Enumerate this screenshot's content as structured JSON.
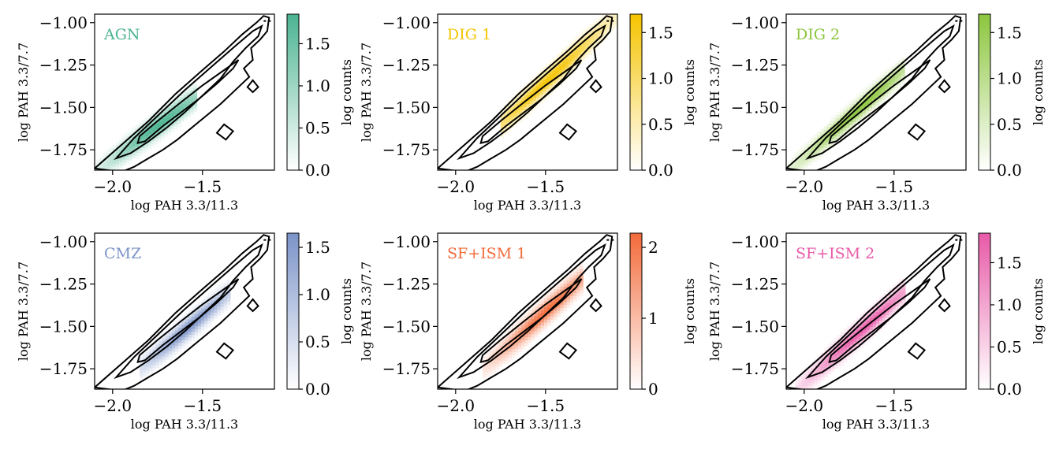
{
  "chart_data": [
    {
      "type": "heatmap",
      "label": "AGN",
      "xlabel": "log PAH 3.3/11.3",
      "ylabel": "log PAH 3.3/7.7",
      "xlim": [
        -2.1,
        -1.1
      ],
      "ylim": [
        -1.87,
        -0.95
      ],
      "xticks": [
        -2.0,
        -1.5
      ],
      "xtick_labels": [
        "−2.0",
        "−1.5"
      ],
      "yticks": [
        -1.0,
        -1.25,
        -1.5,
        -1.75
      ],
      "ytick_labels": [
        "−1.00",
        "−1.25",
        "−1.50",
        "−1.75"
      ],
      "colorbar": {
        "label": "log counts",
        "range": [
          0.0,
          1.85
        ],
        "ticks": [
          0.0,
          0.5,
          1.0,
          1.5
        ],
        "tick_labels": [
          "0.0",
          "0.5",
          "1.0",
          "1.5"
        ]
      },
      "color": "#4bb391",
      "density": {
        "x_start": -2.09,
        "x_end": -1.55,
        "y_start": -1.88,
        "y_end": -1.45,
        "center_x": -1.75,
        "peak": 1.8,
        "width": 0.055
      },
      "contours": true,
      "grid": false
    },
    {
      "type": "heatmap",
      "label": "DIG 1",
      "xlabel": "log PAH 3.3/11.3",
      "ylabel": "log PAH 3.3/7.7",
      "xlim": [
        -2.1,
        -1.1
      ],
      "ylim": [
        -1.87,
        -0.95
      ],
      "xticks": [
        -2.0,
        -1.5
      ],
      "xtick_labels": [
        "−2.0",
        "−1.5"
      ],
      "yticks": [
        -1.0,
        -1.25,
        -1.5,
        -1.75
      ],
      "ytick_labels": [
        "−1.00",
        "−1.25",
        "−1.50",
        "−1.75"
      ],
      "colorbar": {
        "label": "log counts",
        "range": [
          0.0,
          1.7
        ],
        "ticks": [
          0.0,
          0.5,
          1.0,
          1.5
        ],
        "tick_labels": [
          "0.0",
          "0.5",
          "1.0",
          "1.5"
        ]
      },
      "color": "#f5c400",
      "density": {
        "x_start": -1.75,
        "x_end": -1.1,
        "y_start": -1.6,
        "y_end": -0.95,
        "center_x": -1.5,
        "peak": 1.65,
        "width": 0.055
      },
      "contours": true,
      "grid": false
    },
    {
      "type": "heatmap",
      "label": "DIG 2",
      "xlabel": "log PAH 3.3/11.3",
      "ylabel": "log PAH 3.3/7.7",
      "xlim": [
        -2.1,
        -1.1
      ],
      "ylim": [
        -1.87,
        -0.95
      ],
      "xticks": [
        -2.0,
        -1.5
      ],
      "xtick_labels": [
        "−2.0",
        "−1.5"
      ],
      "yticks": [
        -1.0,
        -1.25,
        -1.5,
        -1.75
      ],
      "ytick_labels": [
        "−1.00",
        "−1.25",
        "−1.50",
        "−1.75"
      ],
      "colorbar": {
        "label": "log counts",
        "range": [
          0.0,
          1.7
        ],
        "ticks": [
          0.0,
          0.5,
          1.0,
          1.5
        ],
        "tick_labels": [
          "0.0",
          "0.5",
          "1.0",
          "1.5"
        ]
      },
      "color": "#8cc63e",
      "density": {
        "x_start": -2.09,
        "x_end": -1.45,
        "y_start": -1.88,
        "y_end": -1.28,
        "center_x": -1.7,
        "peak": 1.65,
        "width": 0.05
      },
      "contours": true,
      "grid": false
    },
    {
      "type": "heatmap",
      "label": "CMZ",
      "xlabel": "log PAH 3.3/11.3",
      "ylabel": "log PAH 3.3/7.7",
      "xlim": [
        -2.1,
        -1.1
      ],
      "ylim": [
        -1.87,
        -0.95
      ],
      "xticks": [
        -2.0,
        -1.5
      ],
      "xtick_labels": [
        "−2.0",
        "−1.5"
      ],
      "yticks": [
        -1.0,
        -1.25,
        -1.5,
        -1.75
      ],
      "ytick_labels": [
        "−1.00",
        "−1.25",
        "−1.50",
        "−1.75"
      ],
      "colorbar": {
        "label": "log counts",
        "range": [
          0.0,
          1.65
        ],
        "ticks": [
          0.0,
          0.5,
          1.0,
          1.5
        ],
        "tick_labels": [
          "0.0",
          "0.5",
          "1.0",
          "1.5"
        ]
      },
      "color": "#7b93c8",
      "density": {
        "x_start": -1.85,
        "x_end": -1.35,
        "y_start": -1.75,
        "y_end": -1.3,
        "center_x": -1.58,
        "peak": 1.6,
        "width": 0.055
      },
      "contours": true,
      "grid": false
    },
    {
      "type": "heatmap",
      "label": "SF+ISM 1",
      "xlabel": "log PAH 3.3/11.3",
      "ylabel": "log PAH 3.3/7.7",
      "xlim": [
        -2.1,
        -1.1
      ],
      "ylim": [
        -1.87,
        -0.95
      ],
      "xticks": [
        -2.0,
        -1.5
      ],
      "xtick_labels": [
        "−2.0",
        "−1.5"
      ],
      "yticks": [
        -1.0,
        -1.25,
        -1.5,
        -1.75
      ],
      "ytick_labels": [
        "−1.00",
        "−1.25",
        "−1.50",
        "−1.75"
      ],
      "colorbar": {
        "label": "log counts",
        "range": [
          0.0,
          2.2
        ],
        "ticks": [
          0,
          1,
          2
        ],
        "tick_labels": [
          "0",
          "1",
          "2"
        ]
      },
      "color": "#f36b3b",
      "density": {
        "x_start": -1.85,
        "x_end": -1.3,
        "y_start": -1.75,
        "y_end": -1.22,
        "center_x": -1.5,
        "peak": 2.1,
        "width": 0.06
      },
      "contours": true,
      "grid": false
    },
    {
      "type": "heatmap",
      "label": "SF+ISM 2",
      "xlabel": "log PAH 3.3/11.3",
      "ylabel": "log PAH 3.3/7.7",
      "xlim": [
        -2.1,
        -1.1
      ],
      "ylim": [
        -1.87,
        -0.95
      ],
      "xticks": [
        -2.0,
        -1.5
      ],
      "xtick_labels": [
        "−2.0",
        "−1.5"
      ],
      "yticks": [
        -1.0,
        -1.25,
        -1.5,
        -1.75
      ],
      "ytick_labels": [
        "−1.00",
        "−1.25",
        "−1.50",
        "−1.75"
      ],
      "colorbar": {
        "label": "log counts",
        "range": [
          0.0,
          1.85
        ],
        "ticks": [
          0.0,
          0.5,
          1.0,
          1.5
        ],
        "tick_labels": [
          "0.0",
          "0.5",
          "1.0",
          "1.5"
        ]
      },
      "color": "#e85aa8",
      "density": {
        "x_start": -2.05,
        "x_end": -1.45,
        "y_start": -1.88,
        "y_end": -1.3,
        "center_x": -1.68,
        "peak": 1.8,
        "width": 0.055
      },
      "contours": true,
      "grid": false
    }
  ]
}
